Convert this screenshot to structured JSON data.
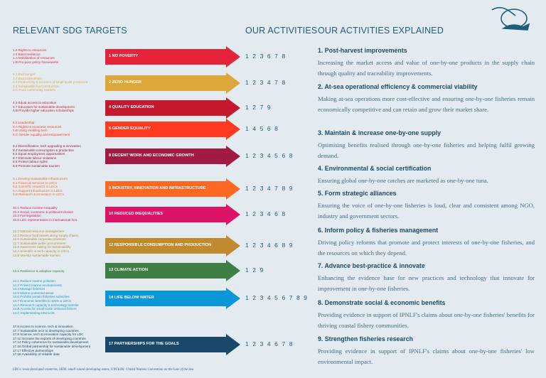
{
  "header": {
    "targets_title": "RELEVANT SDG TARGETS",
    "activities_title": "OUR ACTIVITIES",
    "explained_title": "OUR ACTIVITIES EXPLAINED"
  },
  "rows": [
    {
      "goal": "1 NO POVERTY",
      "color": "#e5243b",
      "activities": "1 2 3 6 7 8",
      "targets": [
        "1.4 Rights to resources",
        "1.5 Build resilience",
        "1.A Mobilisation of resources",
        "1.B Pro-poor policy frameworks"
      ]
    },
    {
      "goal": "2 ZERO HUNGER",
      "color": "#dda63a",
      "activities": "1 2 3 4 7 8",
      "targets": [
        "2.1 End hunger",
        "2.2 End malnutrition",
        "2.3 Productivity & incomes of small-scale producers",
        "2.4 Sustainable food production",
        "2.C Food commodity markets"
      ]
    },
    {
      "goal": "4 QUALITY EDUCATION",
      "color": "#c5192d",
      "activities": "1 2 7 9",
      "targets": [
        "4.3 Equal access to education",
        "4.7 Education for sustainable development",
        "4.B Provide higher education scholarships"
      ]
    },
    {
      "goal": "5 GENDER EQUALITY",
      "color": "#ff3a21",
      "activities": "1 4 5 6 8",
      "targets": [
        "5.5 Leadership",
        "5.A Rights to economic resources",
        "5.B Using enabling tech",
        "5.C Gender equality and empowerment"
      ]
    },
    {
      "goal": "8 DECENT WORK AND ECONOMIC GROWTH",
      "color": "#a21942",
      "activities": "1 2 3 4 5 6 8",
      "targets": [
        "8.2 Diversification, tech upgrading & innovation",
        "8.4 Sustainable consumption & production",
        "8.5 Equal employment opportunities",
        "8.7 Eliminate labour violations",
        "8.8 Protect labour rights",
        "8.9 Promote sustainable tourism"
      ]
    },
    {
      "goal": "9 INDUSTRY, INNOVATION AND INFRASTRUCTURE",
      "color": "#fd6925",
      "activities": "1 2 3 4 7 8 9",
      "targets": [
        "9.1 Develop sustainable infrastructure",
        "9.3 Financial services to LDCs",
        "9.5 Scientific research in LDCs",
        "9.A Support infrastructure in LDCs",
        "9.B Research & innovation in LDCs"
      ]
    },
    {
      "goal": "10 REDUCED INEQUALITIES",
      "color": "#dd1367",
      "activities": "1 2 3 4 6 8",
      "targets": [
        "10.1 Reduce income inequality",
        "10.2 Social, economic & political inclusion",
        "10.3 Fair legislation",
        "10.6 LDC representation in international fora"
      ]
    },
    {
      "goal": "12 RESPONSIBLE CONSUMPTION AND PRODUCTION",
      "color": "#bf8b2e",
      "activities": "1 2 3 4 6 8 9",
      "targets": [
        "12.2 Natural resource management",
        "12.3 Reduce food losses along supply chains",
        "12.6 Sustainable corporate practices",
        "12.7 Sustainable public procurement",
        "12.8 Awareness raising for sustainability",
        "12.A Scientific & tech capacity in LDCs",
        "12.B Monitor sustainable tourism"
      ]
    },
    {
      "goal": "13 CLIMATE ACTION",
      "color": "#3f7e44",
      "activities": "1 2 9",
      "targets": [
        "13.1 Resilience & adaptive capacity"
      ]
    },
    {
      "goal": "14 LIFE BELOW WATER",
      "color": "#0a97d9",
      "activities": "1 2 3 4 5 6 7 8 9",
      "targets": [
        "14.1 Reduce marine pollution",
        "14.2 Protect marine environments",
        "14.4 Manage fisheries",
        "14.5 Marine protected areas",
        "14.6 Prohibit certain fisheries subsidies",
        "14.7 Economic benefits to SIDS & LDCs",
        "14.A Research capacity & technology transfer",
        "14.B Access for small-scale artisanal fishers",
        "14.C Implementing UNCLOS"
      ]
    },
    {
      "goal": "17 PARTNERSHIPS FOR THE GOALS",
      "color": "#19486a",
      "activities": "1 2 3 4 6 7 8",
      "targets": [
        "17.6 Access to science, tech & innovation",
        "17.7 Sustainable tech to developing countries",
        "17.8 Science, tech & innovation capacity for LDC",
        "17.11 Increase the exports of developing countries",
        "17.14 Policy coherence for sustainable development",
        "17.16 Global partnership for sustainable development",
        "17.17 Effective partnerships",
        "17.18 Availability of reliable data"
      ]
    }
  ],
  "explained": [
    {
      "title": "1. Post-harvest improvements",
      "body": "Increasing the market access and value of one-by-one products in the supply chain through quality and traceability improvements."
    },
    {
      "title": "2. At-sea operational efficiency & commercial viability",
      "body": "Making at-sea operations more cost-effective and ensuring one-by-one fisheries remain economically competitive and can retain and grow their market share."
    },
    {
      "title": "3. Maintain & increase one-by-one supply",
      "body": "Optimising benefits realised through one-by-one fisheries and helping fulfil growing demand."
    },
    {
      "title": "4. Environmental & social certification",
      "body": "Ensuring global one-by-one catches are marketed as one-by-one tuna."
    },
    {
      "title": "5. Form strategic alliances",
      "body": "Ensuring the voice of one-by-one fisheries is loud, clear and consistent among NGO, industry and government sectors."
    },
    {
      "title": "6. Inform policy & fisheries management",
      "body": "Driving policy reforms that promote and protect interests of one-by-one fisheries, and the resources on which they depend."
    },
    {
      "title": "7. Advance best-practice & innovate",
      "body": "Enhancing the evidence base for new practices and technology that innovate for improvement in one-by-one fisheries."
    },
    {
      "title": "8. Demonstrate social & economic benefits",
      "body": "Providing evidence in support of IPNLF's claims about one-by-one fisheries' benefits for thriving coastal fishery communities."
    },
    {
      "title": "9. Strengthen fisheries research",
      "body": "Providing evidence in support of IPNLF's claims about one-by-one fisheries' low environmental impact."
    }
  ],
  "footnote": "LDCs: least developed countries, SIDS: small island developing states, UNCLOS: United Nations Convention on the Law of the Sea"
}
